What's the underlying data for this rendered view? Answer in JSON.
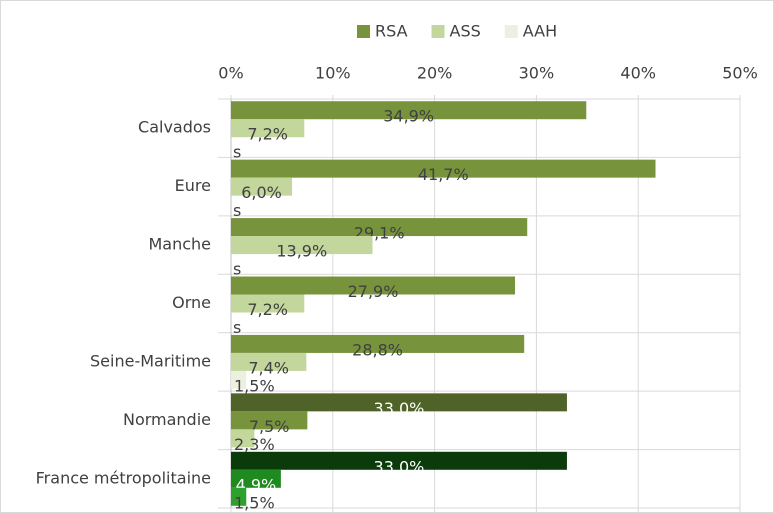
{
  "chart_data": {
    "type": "bar",
    "orientation": "horizontal",
    "categories": [
      "Calvados",
      "Eure",
      "Manche",
      "Orne",
      "Seine-Maritime",
      "Normandie",
      "France métropolitaine"
    ],
    "series": [
      {
        "name": "RSA",
        "color": "#77933c",
        "colors": [
          "#77933c",
          "#77933c",
          "#77933c",
          "#77933c",
          "#77933c",
          "#4f6228",
          "#0b3b0b"
        ],
        "values": [
          34.9,
          41.7,
          29.1,
          27.9,
          28.8,
          33.0,
          33.0
        ],
        "value_labels": [
          "34,9%",
          "41,7%",
          "29,1%",
          "27,9%",
          "28,8%",
          "33,0%",
          "33,0%"
        ]
      },
      {
        "name": "ASS",
        "color": "#c3d69b",
        "colors": [
          "#c3d69b",
          "#c3d69b",
          "#c3d69b",
          "#c3d69b",
          "#c3d69b",
          "#77933c",
          "#1f8a1f"
        ],
        "values": [
          7.2,
          6.0,
          13.9,
          7.2,
          7.4,
          7.5,
          4.9
        ],
        "value_labels": [
          "7,2%",
          "6,0%",
          "13,9%",
          "7,2%",
          "7,4%",
          "7,5%",
          "4,9%"
        ]
      },
      {
        "name": "AAH",
        "color": "#ebf1de",
        "colors": [
          "#ebf1de",
          "#ebf1de",
          "#ebf1de",
          "#ebf1de",
          "#ebf1de",
          "#c3d69b",
          "#2ea02e"
        ],
        "values": [
          null,
          null,
          null,
          null,
          1.5,
          2.3,
          1.5
        ],
        "value_labels": [
          "s",
          "s",
          "s",
          "s",
          "1,5%",
          "2,3%",
          "1,5%"
        ]
      }
    ],
    "xlim": [
      0,
      50
    ],
    "xticks": [
      {
        "value": 0,
        "label": "0%"
      },
      {
        "value": 10,
        "label": "10%"
      },
      {
        "value": 20,
        "label": "20%"
      },
      {
        "value": 30,
        "label": "30%"
      },
      {
        "value": 40,
        "label": "40%"
      },
      {
        "value": 50,
        "label": "50%"
      }
    ],
    "grid": true,
    "legend": "top"
  }
}
